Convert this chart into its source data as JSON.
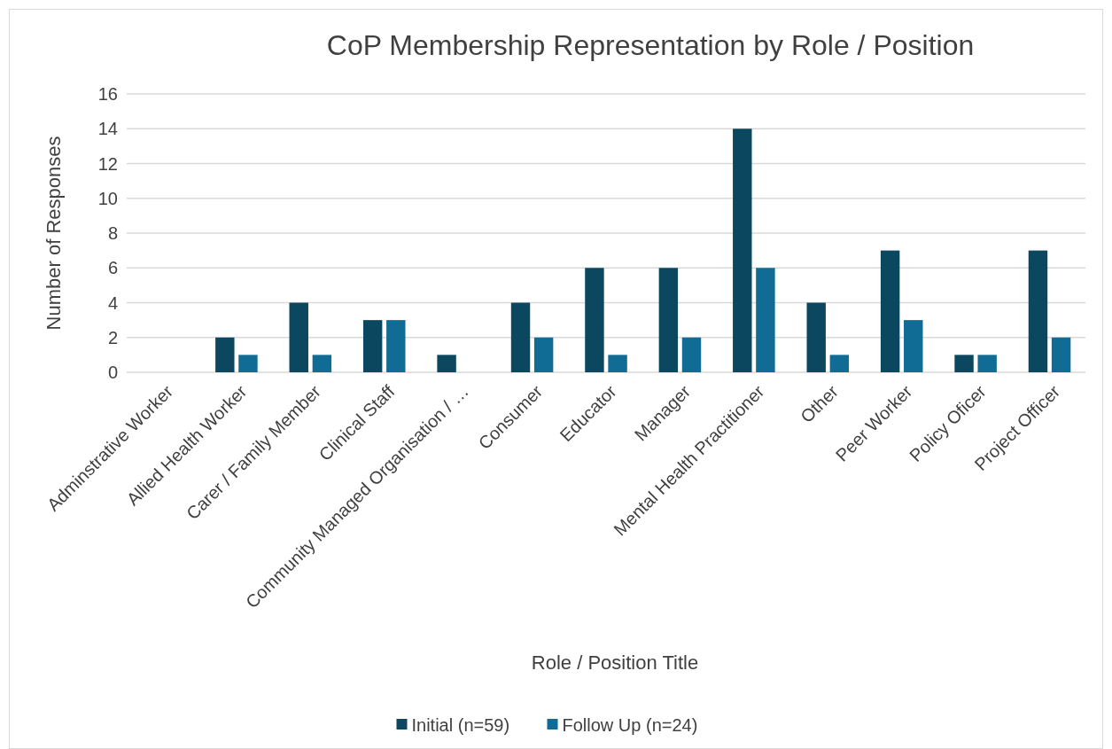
{
  "chart_data": {
    "type": "bar",
    "title": "CoP Membership Representation by Role / Position",
    "xlabel": "Role / Position Title",
    "ylabel": "Number of Responses",
    "categories": [
      "Adminstrative Worker",
      "Allied Health Worker",
      "Carer / Family Member",
      "Clinical Staff",
      "Community Managed Organisation / …",
      "Consumer",
      "Educator",
      "Manager",
      "Mental Health Practitioner",
      "Other",
      "Peer Worker",
      "Policy Oficer",
      "Project Officer"
    ],
    "series": [
      {
        "name": "Initial (n=59)",
        "color": "#0b475f",
        "values": [
          0,
          2,
          4,
          3,
          1,
          4,
          6,
          6,
          14,
          4,
          7,
          1,
          7
        ]
      },
      {
        "name": "Follow Up (n=24)",
        "color": "#116c95",
        "values": [
          0,
          1,
          1,
          3,
          0,
          2,
          1,
          2,
          6,
          1,
          3,
          1,
          2
        ]
      }
    ],
    "ylim": [
      0,
      16
    ],
    "yticks": [
      0,
      2,
      4,
      6,
      8,
      10,
      12,
      14,
      16
    ],
    "grid": "y",
    "legend": "bottom"
  }
}
